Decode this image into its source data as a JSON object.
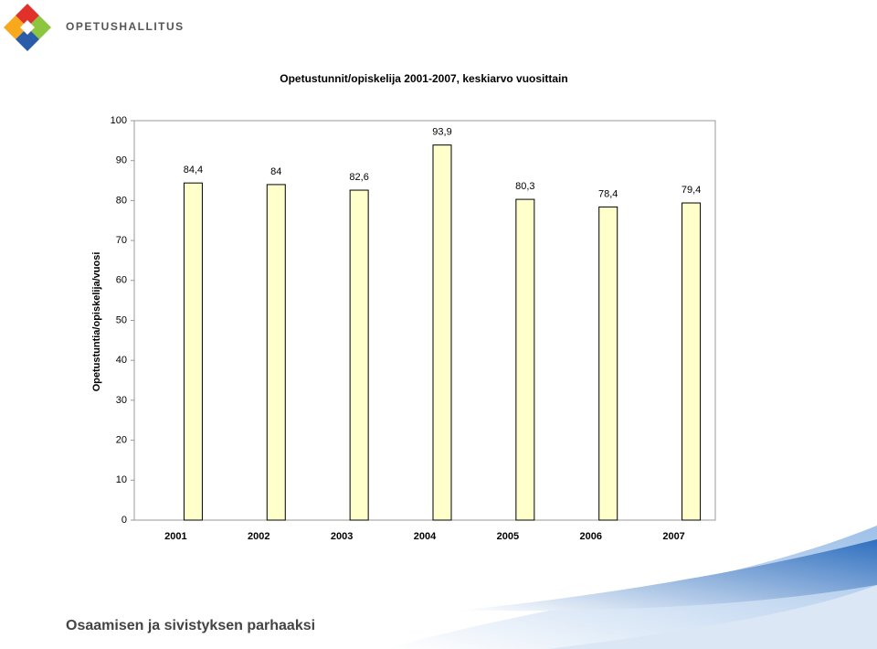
{
  "header": {
    "logo_text": "OPETUSHALLITUS"
  },
  "footer": {
    "slogan": "Osaamisen ja sivistyksen parhaaksi"
  },
  "chart_data": {
    "type": "bar",
    "title": "Opetustunnit/opiskelija 2001-2007, keskiarvo vuosittain",
    "y_label": "Opetustuntia/opiskelija/vuosi",
    "categories": [
      "2001",
      "2002",
      "2003",
      "2004",
      "2005",
      "2006",
      "2007"
    ],
    "values": [
      84.4,
      84,
      82.6,
      93.9,
      80.3,
      78.4,
      79.4
    ],
    "value_labels": [
      "84,4",
      "84",
      "82,6",
      "93,9",
      "80,3",
      "78,4",
      "79,4"
    ],
    "color": "#ffffcc",
    "ylim": [
      0,
      100
    ],
    "yticks": [
      0,
      10,
      20,
      30,
      40,
      50,
      60,
      70,
      80,
      90,
      100
    ],
    "grid": false
  }
}
